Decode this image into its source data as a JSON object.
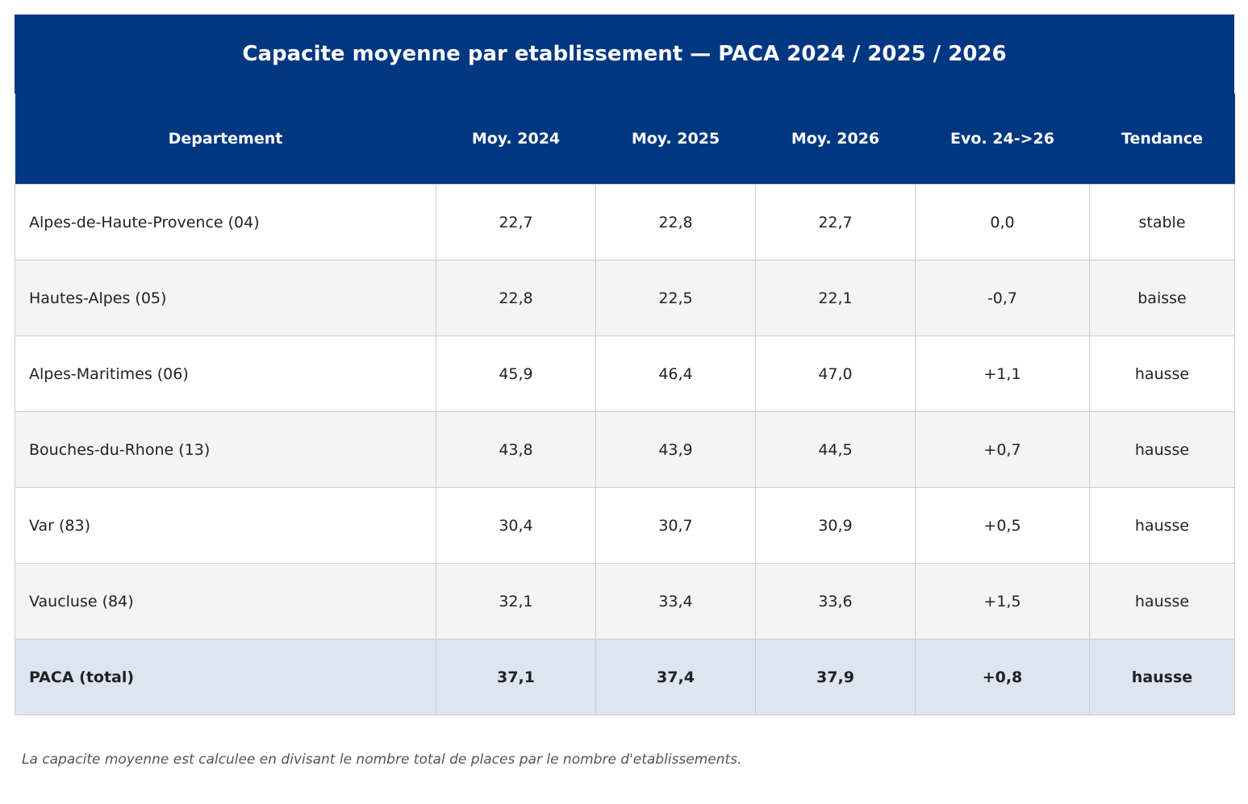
{
  "title": "Capacite moyenne par etablissement — PACA 2024 / 2025 / 2026",
  "table": {
    "columns": [
      "Departement",
      "Moy. 2024",
      "Moy. 2025",
      "Moy. 2026",
      "Evo. 24->26",
      "Tendance"
    ],
    "rows": [
      [
        "Alpes-de-Haute-Provence (04)",
        "22,7",
        "22,8",
        "22,7",
        "0,0",
        "stable"
      ],
      [
        "Hautes-Alpes (05)",
        "22,8",
        "22,5",
        "22,1",
        "-0,7",
        "baisse"
      ],
      [
        "Alpes-Maritimes (06)",
        "45,9",
        "46,4",
        "47,0",
        "+1,1",
        "hausse"
      ],
      [
        "Bouches-du-Rhone (13)",
        "43,8",
        "43,9",
        "44,5",
        "+0,7",
        "hausse"
      ],
      [
        "Var (83)",
        "30,4",
        "30,7",
        "30,9",
        "+0,5",
        "hausse"
      ],
      [
        "Vaucluse (84)",
        "32,1",
        "33,4",
        "33,6",
        "+1,5",
        "hausse"
      ]
    ],
    "total_row": [
      "PACA (total)",
      "37,1",
      "37,4",
      "37,9",
      "+0,8",
      "hausse"
    ]
  },
  "footnote": "La capacite moyenne est calculee en divisant le nombre total de places par le nombre d'etablissements."
}
